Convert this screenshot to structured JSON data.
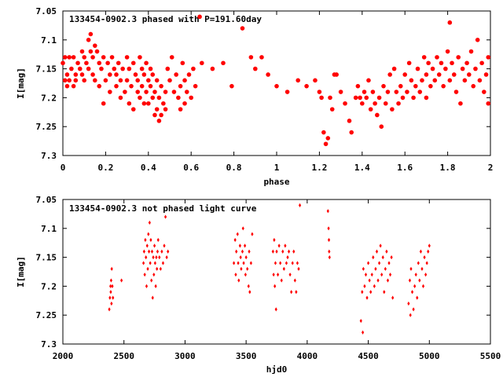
{
  "chart_data": [
    {
      "type": "scatter",
      "title": "133454-0902.3 phased with P=191.60day",
      "xlabel": "phase",
      "ylabel": "I[mag]",
      "xlim": [
        0,
        2
      ],
      "ylim": [
        7.3,
        7.05
      ],
      "y_axis_inverted": true,
      "grid": false,
      "marker": "filled circle",
      "color": "#ff0000",
      "x_ticks": [
        "0",
        "0.2",
        "0.4",
        "0.6",
        "0.8",
        "1",
        "1.2",
        "1.4",
        "1.6",
        "1.8",
        "2"
      ],
      "y_ticks": [
        "7.05",
        "7.1",
        "7.15",
        "7.2",
        "7.25",
        "7.3"
      ],
      "points": [
        [
          0.0,
          7.14
        ],
        [
          0.01,
          7.17
        ],
        [
          0.01,
          7.13
        ],
        [
          0.02,
          7.18
        ],
        [
          0.02,
          7.16
        ],
        [
          0.03,
          7.13
        ],
        [
          0.03,
          7.17
        ],
        [
          0.04,
          7.15
        ],
        [
          0.05,
          7.13
        ],
        [
          0.05,
          7.18
        ],
        [
          0.06,
          7.16
        ],
        [
          0.06,
          7.17
        ],
        [
          0.07,
          7.14
        ],
        [
          0.08,
          7.15
        ],
        [
          0.09,
          7.12
        ],
        [
          0.09,
          7.16
        ],
        [
          0.1,
          7.13
        ],
        [
          0.1,
          7.17
        ],
        [
          0.11,
          7.14
        ],
        [
          0.12,
          7.1
        ],
        [
          0.12,
          7.15
        ],
        [
          0.13,
          7.09
        ],
        [
          0.13,
          7.12
        ],
        [
          0.14,
          7.16
        ],
        [
          0.14,
          7.13
        ],
        [
          0.15,
          7.11
        ],
        [
          0.15,
          7.17
        ],
        [
          0.16,
          7.12
        ],
        [
          0.17,
          7.14
        ],
        [
          0.17,
          7.18
        ],
        [
          0.18,
          7.15
        ],
        [
          0.19,
          7.13
        ],
        [
          0.19,
          7.21
        ],
        [
          0.2,
          7.17
        ],
        [
          0.21,
          7.14
        ],
        [
          0.22,
          7.16
        ],
        [
          0.22,
          7.19
        ],
        [
          0.23,
          7.13
        ],
        [
          0.24,
          7.15
        ],
        [
          0.25,
          7.18
        ],
        [
          0.25,
          7.16
        ],
        [
          0.26,
          7.14
        ],
        [
          0.27,
          7.17
        ],
        [
          0.27,
          7.2
        ],
        [
          0.28,
          7.15
        ],
        [
          0.29,
          7.19
        ],
        [
          0.3,
          7.13
        ],
        [
          0.3,
          7.17
        ],
        [
          0.31,
          7.21
        ],
        [
          0.31,
          7.15
        ],
        [
          0.32,
          7.18
        ],
        [
          0.33,
          7.14
        ],
        [
          0.33,
          7.22
        ],
        [
          0.34,
          7.16
        ],
        [
          0.35,
          7.19
        ],
        [
          0.35,
          7.17
        ],
        [
          0.36,
          7.13
        ],
        [
          0.36,
          7.2
        ],
        [
          0.37,
          7.15
        ],
        [
          0.37,
          7.18
        ],
        [
          0.38,
          7.16
        ],
        [
          0.38,
          7.21
        ],
        [
          0.39,
          7.14
        ],
        [
          0.39,
          7.19
        ],
        [
          0.4,
          7.17
        ],
        [
          0.4,
          7.21
        ],
        [
          0.41,
          7.15
        ],
        [
          0.41,
          7.18
        ],
        [
          0.42,
          7.2
        ],
        [
          0.42,
          7.16
        ],
        [
          0.43,
          7.23
        ],
        [
          0.43,
          7.19
        ],
        [
          0.44,
          7.17
        ],
        [
          0.44,
          7.22
        ],
        [
          0.45,
          7.2
        ],
        [
          0.45,
          7.24
        ],
        [
          0.46,
          7.18
        ],
        [
          0.46,
          7.23
        ],
        [
          0.47,
          7.21
        ],
        [
          0.48,
          7.19
        ],
        [
          0.48,
          7.22
        ],
        [
          0.49,
          7.15
        ],
        [
          0.5,
          7.17
        ],
        [
          0.51,
          7.13
        ],
        [
          0.52,
          7.19
        ],
        [
          0.53,
          7.16
        ],
        [
          0.54,
          7.2
        ],
        [
          0.55,
          7.18
        ],
        [
          0.55,
          7.22
        ],
        [
          0.56,
          7.14
        ],
        [
          0.57,
          7.17
        ],
        [
          0.57,
          7.21
        ],
        [
          0.58,
          7.19
        ],
        [
          0.59,
          7.16
        ],
        [
          0.6,
          7.2
        ],
        [
          0.61,
          7.15
        ],
        [
          0.62,
          7.18
        ],
        [
          0.64,
          7.06
        ],
        [
          0.65,
          7.14
        ],
        [
          0.7,
          7.15
        ],
        [
          0.75,
          7.14
        ],
        [
          0.79,
          7.18
        ],
        [
          0.84,
          7.08
        ],
        [
          0.88,
          7.13
        ],
        [
          0.9,
          7.15
        ],
        [
          0.93,
          7.13
        ],
        [
          0.96,
          7.16
        ],
        [
          1.0,
          7.18
        ],
        [
          1.05,
          7.19
        ],
        [
          1.1,
          7.17
        ],
        [
          1.14,
          7.18
        ],
        [
          1.18,
          7.17
        ],
        [
          1.2,
          7.19
        ],
        [
          1.21,
          7.2
        ],
        [
          1.22,
          7.26
        ],
        [
          1.23,
          7.28
        ],
        [
          1.24,
          7.27
        ],
        [
          1.25,
          7.2
        ],
        [
          1.26,
          7.22
        ],
        [
          1.27,
          7.16
        ],
        [
          1.28,
          7.16
        ],
        [
          1.3,
          7.19
        ],
        [
          1.32,
          7.21
        ],
        [
          1.34,
          7.24
        ],
        [
          1.35,
          7.26
        ],
        [
          1.37,
          7.2
        ],
        [
          1.38,
          7.18
        ],
        [
          1.39,
          7.2
        ],
        [
          1.4,
          7.21
        ],
        [
          1.41,
          7.19
        ],
        [
          1.42,
          7.2
        ],
        [
          1.43,
          7.17
        ],
        [
          1.44,
          7.22
        ],
        [
          1.45,
          7.19
        ],
        [
          1.46,
          7.21
        ],
        [
          1.47,
          7.23
        ],
        [
          1.48,
          7.2
        ],
        [
          1.49,
          7.25
        ],
        [
          1.5,
          7.18
        ],
        [
          1.51,
          7.21
        ],
        [
          1.52,
          7.19
        ],
        [
          1.53,
          7.16
        ],
        [
          1.54,
          7.22
        ],
        [
          1.55,
          7.15
        ],
        [
          1.56,
          7.19
        ],
        [
          1.57,
          7.21
        ],
        [
          1.58,
          7.18
        ],
        [
          1.59,
          7.2
        ],
        [
          1.6,
          7.16
        ],
        [
          1.61,
          7.19
        ],
        [
          1.62,
          7.14
        ],
        [
          1.63,
          7.17
        ],
        [
          1.64,
          7.2
        ],
        [
          1.65,
          7.18
        ],
        [
          1.66,
          7.15
        ],
        [
          1.67,
          7.19
        ],
        [
          1.68,
          7.17
        ],
        [
          1.69,
          7.13
        ],
        [
          1.7,
          7.16
        ],
        [
          1.7,
          7.2
        ],
        [
          1.71,
          7.14
        ],
        [
          1.72,
          7.18
        ],
        [
          1.73,
          7.15
        ],
        [
          1.74,
          7.17
        ],
        [
          1.75,
          7.13
        ],
        [
          1.76,
          7.16
        ],
        [
          1.77,
          7.14
        ],
        [
          1.78,
          7.18
        ],
        [
          1.79,
          7.15
        ],
        [
          1.8,
          7.12
        ],
        [
          1.81,
          7.17
        ],
        [
          1.81,
          7.07
        ],
        [
          1.82,
          7.14
        ],
        [
          1.83,
          7.16
        ],
        [
          1.84,
          7.19
        ],
        [
          1.85,
          7.13
        ],
        [
          1.86,
          7.21
        ],
        [
          1.87,
          7.15
        ],
        [
          1.88,
          7.17
        ],
        [
          1.89,
          7.14
        ],
        [
          1.9,
          7.16
        ],
        [
          1.91,
          7.12
        ],
        [
          1.92,
          7.18
        ],
        [
          1.93,
          7.15
        ],
        [
          1.94,
          7.1
        ],
        [
          1.95,
          7.17
        ],
        [
          1.96,
          7.14
        ],
        [
          1.97,
          7.19
        ],
        [
          1.98,
          7.16
        ],
        [
          1.99,
          7.21
        ],
        [
          1.99,
          7.13
        ]
      ]
    },
    {
      "type": "scatter",
      "title": "133454-0902.3 not phased light curve",
      "xlabel": "hjd0",
      "ylabel": "I[mag]",
      "xlim": [
        2000,
        5500
      ],
      "ylim": [
        7.3,
        7.05
      ],
      "y_axis_inverted": true,
      "grid": false,
      "marker": "small diamond",
      "color": "#ff0000",
      "x_ticks": [
        "2000",
        "2500",
        "3000",
        "3500",
        "4000",
        "4500",
        "5000",
        "5500"
      ],
      "y_ticks": [
        "7.05",
        "7.1",
        "7.15",
        "7.2",
        "7.25",
        "7.3"
      ],
      "points": [
        [
          2380,
          7.24
        ],
        [
          2385,
          7.22
        ],
        [
          2390,
          7.2
        ],
        [
          2392,
          7.21
        ],
        [
          2395,
          7.19
        ],
        [
          2398,
          7.23
        ],
        [
          2400,
          7.17
        ],
        [
          2405,
          7.2
        ],
        [
          2410,
          7.22
        ],
        [
          2480,
          7.19
        ],
        [
          2660,
          7.16
        ],
        [
          2665,
          7.14
        ],
        [
          2670,
          7.18
        ],
        [
          2675,
          7.12
        ],
        [
          2680,
          7.15
        ],
        [
          2685,
          7.2
        ],
        [
          2690,
          7.13
        ],
        [
          2695,
          7.17
        ],
        [
          2700,
          7.11
        ],
        [
          2705,
          7.14
        ],
        [
          2710,
          7.09
        ],
        [
          2715,
          7.16
        ],
        [
          2720,
          7.12
        ],
        [
          2725,
          7.19
        ],
        [
          2730,
          7.14
        ],
        [
          2735,
          7.22
        ],
        [
          2740,
          7.15
        ],
        [
          2745,
          7.18
        ],
        [
          2750,
          7.13
        ],
        [
          2755,
          7.16
        ],
        [
          2760,
          7.2
        ],
        [
          2765,
          7.15
        ],
        [
          2770,
          7.17
        ],
        [
          2775,
          7.14
        ],
        [
          2780,
          7.12
        ],
        [
          2790,
          7.15
        ],
        [
          2800,
          7.17
        ],
        [
          2810,
          7.14
        ],
        [
          2820,
          7.16
        ],
        [
          2830,
          7.13
        ],
        [
          2840,
          7.08
        ],
        [
          2850,
          7.15
        ],
        [
          2860,
          7.14
        ],
        [
          3400,
          7.16
        ],
        [
          3410,
          7.12
        ],
        [
          3415,
          7.18
        ],
        [
          3420,
          7.14
        ],
        [
          3430,
          7.11
        ],
        [
          3435,
          7.16
        ],
        [
          3440,
          7.19
        ],
        [
          3450,
          7.13
        ],
        [
          3455,
          7.15
        ],
        [
          3460,
          7.17
        ],
        [
          3470,
          7.14
        ],
        [
          3475,
          7.1
        ],
        [
          3480,
          7.16
        ],
        [
          3490,
          7.13
        ],
        [
          3495,
          7.18
        ],
        [
          3500,
          7.15
        ],
        [
          3510,
          7.17
        ],
        [
          3520,
          7.2
        ],
        [
          3525,
          7.14
        ],
        [
          3530,
          7.21
        ],
        [
          3540,
          7.16
        ],
        [
          3550,
          7.11
        ],
        [
          3720,
          7.14
        ],
        [
          3725,
          7.18
        ],
        [
          3730,
          7.12
        ],
        [
          3735,
          7.2
        ],
        [
          3740,
          7.16
        ],
        [
          3745,
          7.24
        ],
        [
          3750,
          7.14
        ],
        [
          3760,
          7.18
        ],
        [
          3770,
          7.13
        ],
        [
          3780,
          7.16
        ],
        [
          3790,
          7.19
        ],
        [
          3800,
          7.14
        ],
        [
          3810,
          7.17
        ],
        [
          3820,
          7.13
        ],
        [
          3830,
          7.16
        ],
        [
          3840,
          7.15
        ],
        [
          3850,
          7.14
        ],
        [
          3860,
          7.18
        ],
        [
          3870,
          7.21
        ],
        [
          3880,
          7.16
        ],
        [
          3890,
          7.14
        ],
        [
          3900,
          7.19
        ],
        [
          3910,
          7.21
        ],
        [
          3920,
          7.16
        ],
        [
          3930,
          7.17
        ],
        [
          3940,
          7.06
        ],
        [
          4170,
          7.07
        ],
        [
          4175,
          7.1
        ],
        [
          4178,
          7.12
        ],
        [
          4180,
          7.14
        ],
        [
          4183,
          7.15
        ],
        [
          4440,
          7.26
        ],
        [
          4450,
          7.21
        ],
        [
          4455,
          7.28
        ],
        [
          4460,
          7.17
        ],
        [
          4470,
          7.2
        ],
        [
          4480,
          7.18
        ],
        [
          4490,
          7.22
        ],
        [
          4500,
          7.16
        ],
        [
          4510,
          7.19
        ],
        [
          4520,
          7.21
        ],
        [
          4530,
          7.18
        ],
        [
          4540,
          7.15
        ],
        [
          4550,
          7.2
        ],
        [
          4560,
          7.17
        ],
        [
          4570,
          7.14
        ],
        [
          4580,
          7.19
        ],
        [
          4590,
          7.16
        ],
        [
          4600,
          7.13
        ],
        [
          4610,
          7.18
        ],
        [
          4620,
          7.15
        ],
        [
          4630,
          7.21
        ],
        [
          4640,
          7.17
        ],
        [
          4650,
          7.14
        ],
        [
          4660,
          7.19
        ],
        [
          4670,
          7.16
        ],
        [
          4680,
          7.18
        ],
        [
          4690,
          7.15
        ],
        [
          4700,
          7.22
        ],
        [
          4830,
          7.23
        ],
        [
          4840,
          7.19
        ],
        [
          4845,
          7.25
        ],
        [
          4850,
          7.17
        ],
        [
          4860,
          7.21
        ],
        [
          4870,
          7.24
        ],
        [
          4880,
          7.2
        ],
        [
          4890,
          7.18
        ],
        [
          4900,
          7.22
        ],
        [
          4910,
          7.16
        ],
        [
          4920,
          7.19
        ],
        [
          4930,
          7.14
        ],
        [
          4940,
          7.17
        ],
        [
          4950,
          7.2
        ],
        [
          4960,
          7.15
        ],
        [
          4970,
          7.18
        ],
        [
          4980,
          7.16
        ],
        [
          4990,
          7.14
        ],
        [
          5000,
          7.13
        ]
      ]
    }
  ]
}
